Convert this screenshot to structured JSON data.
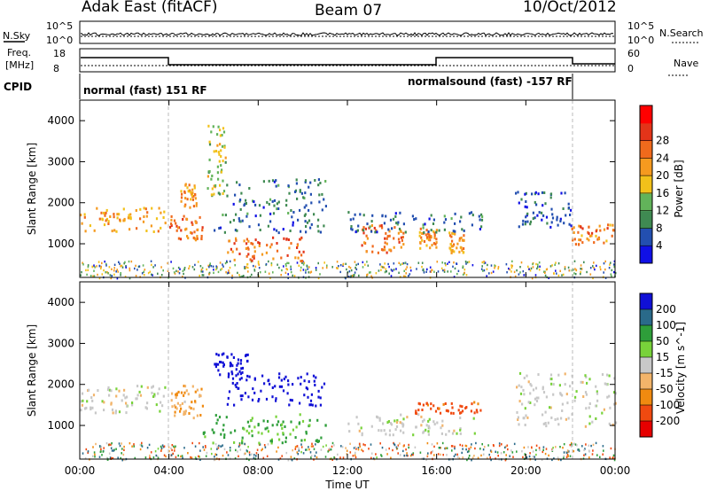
{
  "header": {
    "title": "Adak East (fitACF)",
    "beam": "Beam 07",
    "date": "10/Oct/2012"
  },
  "noise_panel": {
    "left_label": "N.Sky",
    "right_label": "N.Search",
    "left_ticks": [
      "10^5",
      "10^0"
    ],
    "right_ticks": [
      "10^5",
      "10^0"
    ]
  },
  "freq_panel": {
    "left_label_1": "Freq.",
    "left_label_2": "[MHz]",
    "right_label": "Nave",
    "left_ticks": [
      "18",
      "8"
    ],
    "right_ticks": [
      "60",
      "0"
    ]
  },
  "cpid_panel": {
    "label": "CPID",
    "mode_1": "normal (fast) 151 RF",
    "mode_2": "normalsound (fast) -157 RF"
  },
  "chart_data": [
    {
      "type": "heatmap",
      "name": "power",
      "ylabel": "Slant Range [km]",
      "yticks": [
        "1000",
        "2000",
        "3000",
        "4000"
      ],
      "ylim": [
        180,
        4500
      ],
      "colorbar_label": "Power [dB]",
      "colorbar_ticks": [
        "4",
        "8",
        "12",
        "16",
        "20",
        "24",
        "28"
      ],
      "colorbar_colors": [
        "#1010e6",
        "#234fb0",
        "#3f8a52",
        "#62b35a",
        "#f2c11a",
        "#f59a1f",
        "#f06a1c",
        "#e33419",
        "#ff0000"
      ],
      "echo_regions": [
        {
          "t": [
            0.0,
            3.9
          ],
          "r": [
            1300,
            1900
          ],
          "p": 22
        },
        {
          "t": [
            4.0,
            5.5
          ],
          "r": [
            1100,
            1700
          ],
          "p": 26
        },
        {
          "t": [
            4.5,
            5.2
          ],
          "r": [
            1900,
            2500
          ],
          "p": 22
        },
        {
          "t": [
            5.7,
            6.5
          ],
          "r": [
            2200,
            4000
          ],
          "p": 16
        },
        {
          "t": [
            6.5,
            10.0
          ],
          "r": [
            600,
            1200
          ],
          "p": 26
        },
        {
          "t": [
            6.0,
            11.0
          ],
          "r": [
            1300,
            2600
          ],
          "p": 8
        },
        {
          "t": [
            12.5,
            14.5
          ],
          "r": [
            800,
            1500
          ],
          "p": 26
        },
        {
          "t": [
            15.2,
            16.0
          ],
          "r": [
            900,
            1400
          ],
          "p": 22
        },
        {
          "t": [
            16.5,
            17.2
          ],
          "r": [
            800,
            1300
          ],
          "p": 22
        },
        {
          "t": [
            12.0,
            18.0
          ],
          "r": [
            1300,
            1800
          ],
          "p": 8
        },
        {
          "t": [
            19.5,
            22.0
          ],
          "r": [
            1400,
            2300
          ],
          "p": 6
        },
        {
          "t": [
            22.0,
            24.0
          ],
          "r": [
            1000,
            1500
          ],
          "p": 24
        }
      ]
    },
    {
      "type": "heatmap",
      "name": "velocity",
      "ylabel": "Slant Range [km]",
      "yticks": [
        "1000",
        "2000",
        "3000",
        "4000"
      ],
      "ylim": [
        180,
        4500
      ],
      "colorbar_label": "Velocity [m s^-1]",
      "colorbar_ticks": [
        "200",
        "100",
        "50",
        "15",
        "-15",
        "-50",
        "-100",
        "-200"
      ],
      "colorbar_colors": [
        "#1010d6",
        "#2a6a8a",
        "#2e9e3a",
        "#78d23a",
        "#c8c8c8",
        "#f2b46a",
        "#f08a10",
        "#f04a10",
        "#e60000"
      ],
      "echo_regions": [
        {
          "t": [
            0.0,
            3.9
          ],
          "r": [
            1300,
            2000
          ],
          "v": 0
        },
        {
          "t": [
            4.0,
            5.5
          ],
          "r": [
            1200,
            2000
          ],
          "v": -30
        },
        {
          "t": [
            6.0,
            7.5
          ],
          "r": [
            2200,
            2800
          ],
          "v": 200
        },
        {
          "t": [
            6.5,
            11.0
          ],
          "r": [
            1500,
            2300
          ],
          "v": 200
        },
        {
          "t": [
            5.5,
            11.0
          ],
          "r": [
            600,
            1300
          ],
          "v": 40
        },
        {
          "t": [
            12.0,
            18.0
          ],
          "r": [
            800,
            1300
          ],
          "v": 0
        },
        {
          "t": [
            15.0,
            18.0
          ],
          "r": [
            1300,
            1600
          ],
          "v": -90
        },
        {
          "t": [
            19.5,
            24.0
          ],
          "r": [
            1000,
            2300
          ],
          "v": 0
        }
      ]
    }
  ],
  "time_axis": {
    "xlabel": "Time UT",
    "ticks": [
      "00:00",
      "04:00",
      "08:00",
      "12:00",
      "16:00",
      "20:00",
      "00:00"
    ]
  }
}
